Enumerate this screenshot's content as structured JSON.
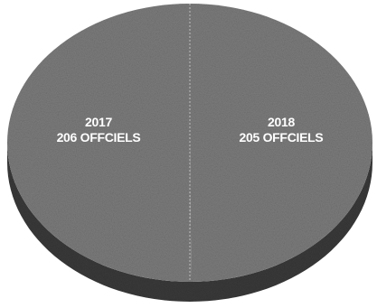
{
  "chart_data": {
    "type": "pie",
    "style": "3d",
    "title": "",
    "categories": [
      "2017",
      "2018"
    ],
    "values": [
      206,
      205
    ],
    "labels": [
      {
        "category": "2017",
        "text": "206 OFFCIELS"
      },
      {
        "category": "2018",
        "text": "205 OFFCIELS"
      }
    ],
    "colors": {
      "top": "#7c7c7c",
      "side": "#3a3a3a",
      "divider": "#bdbdbd",
      "label": "#ffffff"
    },
    "legend": "none"
  }
}
